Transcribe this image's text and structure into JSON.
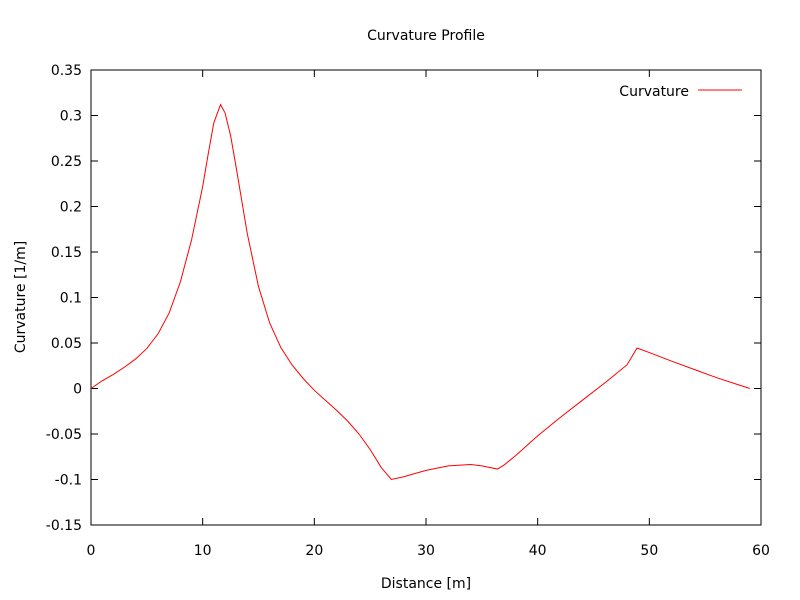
{
  "chart_data": {
    "type": "line",
    "title": "Curvature Profile",
    "xlabel": "Distance [m]",
    "ylabel": "Curvature [1/m]",
    "xlim": [
      0,
      60
    ],
    "ylim": [
      -0.15,
      0.35
    ],
    "xticks": [
      0,
      10,
      20,
      30,
      40,
      50,
      60
    ],
    "yticks": [
      -0.15,
      -0.1,
      -0.05,
      0,
      0.05,
      0.1,
      0.15,
      0.2,
      0.25,
      0.3,
      0.35
    ],
    "xtick_labels": [
      "0",
      "10",
      "20",
      "30",
      "40",
      "50",
      "60"
    ],
    "ytick_labels": [
      "-0.15",
      "-0.1",
      "-0.05",
      "0",
      "0.05",
      "0.1",
      "0.15",
      "0.2",
      "0.25",
      "0.3",
      "0.35"
    ],
    "grid": false,
    "legend_position": "top-right",
    "series": [
      {
        "name": "Curvature",
        "color": "#ff0000",
        "x": [
          0,
          1,
          2,
          3,
          4,
          5,
          6,
          7,
          8,
          9,
          10,
          10.5,
          11,
          11.6,
          12,
          12.5,
          13,
          14,
          15,
          16,
          17,
          18,
          19,
          20,
          21,
          22,
          23,
          24,
          25,
          26,
          26.9,
          28,
          30,
          32,
          34,
          35,
          36.4,
          37,
          38,
          40,
          42,
          44,
          46,
          48,
          48.9,
          50,
          52,
          54,
          56,
          58,
          59
        ],
        "y": [
          0,
          0.0085,
          0.0155,
          0.0235,
          0.0325,
          0.044,
          0.06,
          0.083,
          0.117,
          0.163,
          0.222,
          0.258,
          0.292,
          0.312,
          0.303,
          0.278,
          0.243,
          0.17,
          0.112,
          0.072,
          0.045,
          0.026,
          0.011,
          -0.002,
          -0.013,
          -0.024,
          -0.036,
          -0.05,
          -0.067,
          -0.087,
          -0.1,
          -0.097,
          -0.09,
          -0.085,
          -0.0835,
          -0.085,
          -0.0885,
          -0.084,
          -0.074,
          -0.052,
          -0.032,
          -0.013,
          0.006,
          0.026,
          0.0445,
          0.0395,
          0.03,
          0.021,
          0.012,
          0.004,
          0
        ]
      }
    ]
  }
}
